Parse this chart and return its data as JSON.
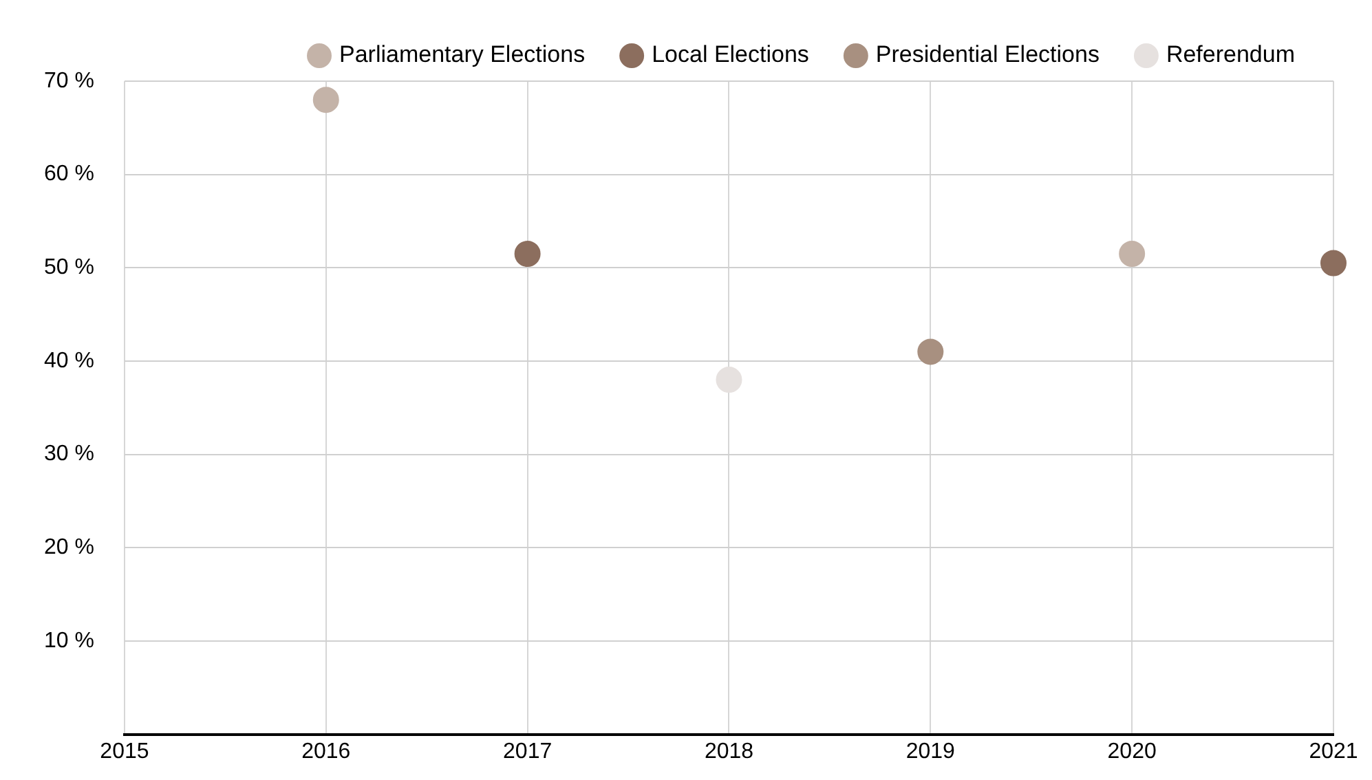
{
  "chart_data": {
    "type": "scatter",
    "xlim": [
      2015,
      2021
    ],
    "xticks": [
      2015,
      2016,
      2017,
      2018,
      2019,
      2020,
      2021
    ],
    "ylim": [
      0,
      70
    ],
    "yticks": [
      {
        "value": 0,
        "label": null
      },
      {
        "value": 10,
        "label": "10 %"
      },
      {
        "value": 20,
        "label": "20 %"
      },
      {
        "value": 30,
        "label": "30 %"
      },
      {
        "value": 40,
        "label": "40 %"
      },
      {
        "value": 50,
        "label": "50 %"
      },
      {
        "value": 60,
        "label": "60 %"
      },
      {
        "value": 70,
        "label": "70 %"
      }
    ],
    "series": [
      {
        "name": "Parliamentary Elections",
        "color": "#c4b3a8",
        "x": [
          2016,
          2020
        ],
        "values": [
          68,
          51.5
        ]
      },
      {
        "name": "Local Elections",
        "color": "#8c6e5e",
        "x": [
          2017,
          2021
        ],
        "values": [
          51.5,
          50.5
        ]
      },
      {
        "name": "Presidential Elections",
        "color": "#a89080",
        "x": [
          2019
        ],
        "values": [
          41
        ]
      },
      {
        "name": "Referendum",
        "color": "#e6e1df",
        "x": [
          2018
        ],
        "values": [
          38
        ]
      }
    ],
    "grid": true,
    "legend": "top right",
    "marker": "circle"
  }
}
